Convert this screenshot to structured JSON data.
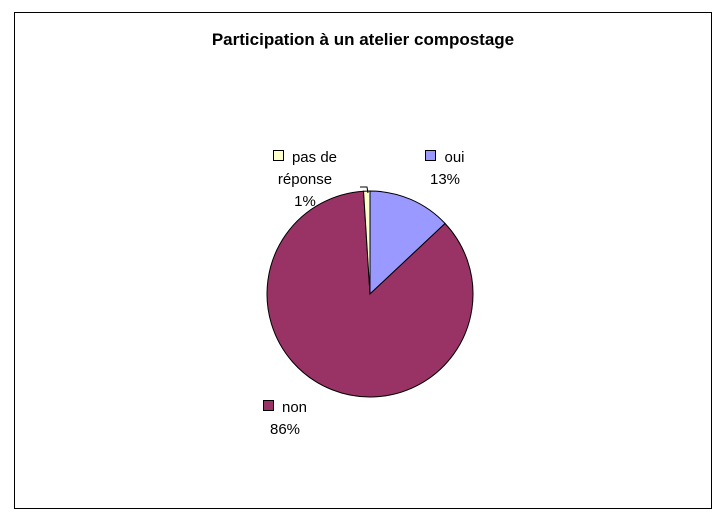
{
  "chart_data": {
    "type": "pie",
    "title": "Participation à un atelier compostage",
    "categories": [
      "oui",
      "non",
      "pas de réponse"
    ],
    "values": [
      13,
      86,
      1
    ],
    "value_labels": [
      "13%",
      "86%",
      "1%"
    ],
    "colors": [
      "#9999ff",
      "#993366",
      "#ffffcc"
    ]
  }
}
